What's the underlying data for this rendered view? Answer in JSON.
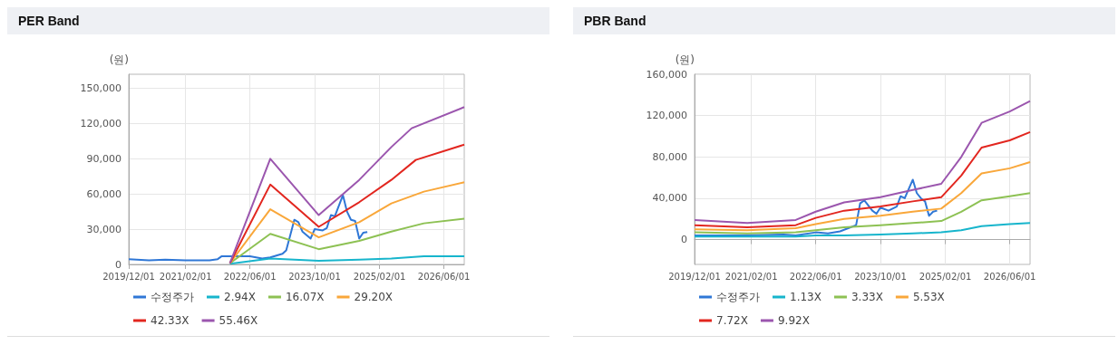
{
  "chart_data": [
    {
      "type": "line",
      "title": "PER Band",
      "ylabel": "(원)",
      "grid": true,
      "legend": "bottom",
      "marker": "none",
      "xlim": [
        "2019-12-01",
        "2026-11-01"
      ],
      "xticks": [
        {
          "value": "2019-12-01",
          "label": "2019/12/01"
        },
        {
          "value": "2021-02-01",
          "label": "2021/02/01"
        },
        {
          "value": "2022-06-01",
          "label": "2022/06/01"
        },
        {
          "value": "2023-10-01",
          "label": "2023/10/01"
        },
        {
          "value": "2025-02-01",
          "label": "2025/02/01"
        },
        {
          "value": "2026-06-01",
          "label": "2026/06/01"
        }
      ],
      "ylim": [
        0,
        162000
      ],
      "yticks": [
        0,
        {
          "value": 30000,
          "label": "30,000"
        },
        {
          "value": 60000,
          "label": "60,000"
        },
        {
          "value": 90000,
          "label": "90,000"
        },
        {
          "value": 120000,
          "label": "120,000"
        },
        {
          "value": 150000,
          "label": "150,000"
        }
      ],
      "series": [
        {
          "name": "수정주가",
          "color": "#2f77d6",
          "x": [
            "2019-12-01",
            "2020-05-01",
            "2020-09-01",
            "2021-02-01",
            "2021-08-01",
            "2021-10-01",
            "2021-11-01",
            "2022-03-01",
            "2022-06-01",
            "2022-09-01",
            "2022-11-01",
            "2023-02-01",
            "2023-03-01",
            "2023-04-01",
            "2023-05-01",
            "2023-06-01",
            "2023-07-01",
            "2023-09-01",
            "2023-10-01",
            "2023-12-01",
            "2024-01-01",
            "2024-02-01",
            "2024-03-01",
            "2024-05-01",
            "2024-06-01",
            "2024-07-01",
            "2024-08-01",
            "2024-09-01",
            "2024-10-01",
            "2024-11-01"
          ],
          "values": [
            4400,
            3500,
            4000,
            3500,
            3500,
            4500,
            7000,
            7000,
            7000,
            5000,
            6000,
            9000,
            12000,
            25000,
            38000,
            36000,
            28000,
            22000,
            30000,
            29000,
            31000,
            42000,
            41000,
            59000,
            45000,
            38000,
            37000,
            22000,
            27000,
            27500
          ]
        },
        {
          "name": "2.94X",
          "color": "#17b5cc",
          "x": [
            "2022-01-01",
            "2022-11-01",
            "2023-11-01",
            "2024-09-01",
            "2025-05-01",
            "2026-01-01",
            "2026-11-01"
          ],
          "values": [
            500,
            5000,
            3000,
            4000,
            5000,
            7000,
            7000
          ]
        },
        {
          "name": "16.07X",
          "color": "#8dc153",
          "x": [
            "2022-01-01",
            "2022-11-01",
            "2023-11-01",
            "2024-09-01",
            "2025-05-01",
            "2026-01-01",
            "2026-11-01"
          ],
          "values": [
            1000,
            26000,
            13000,
            20000,
            28000,
            35000,
            39000
          ]
        },
        {
          "name": "29.20X",
          "color": "#f9a73a",
          "x": [
            "2022-01-01",
            "2022-11-01",
            "2023-11-01",
            "2024-09-01",
            "2025-05-01",
            "2026-01-01",
            "2026-11-01"
          ],
          "values": [
            1000,
            47000,
            23000,
            36000,
            52000,
            62000,
            70000
          ]
        },
        {
          "name": "42.33X",
          "color": "#e2261f",
          "x": [
            "2022-01-01",
            "2022-11-01",
            "2023-11-01",
            "2024-09-01",
            "2025-05-01",
            "2025-11-01",
            "2026-11-01"
          ],
          "values": [
            1000,
            68000,
            32000,
            53000,
            72000,
            89000,
            102000
          ]
        },
        {
          "name": "55.46X",
          "color": "#9b56ae",
          "x": [
            "2022-01-01",
            "2022-11-01",
            "2023-11-01",
            "2024-09-01",
            "2025-05-01",
            "2025-10-01",
            "2026-11-01"
          ],
          "values": [
            1000,
            90000,
            42000,
            72000,
            100000,
            116000,
            134000
          ]
        }
      ]
    },
    {
      "type": "line",
      "title": "PBR Band",
      "ylabel": "(원)",
      "grid": true,
      "legend": "bottom",
      "marker": "none",
      "xlim": [
        "2019-12-01",
        "2026-11-01"
      ],
      "xticks": [
        {
          "value": "2019-12-01",
          "label": "2019/12/01"
        },
        {
          "value": "2021-02-01",
          "label": "2021/02/01"
        },
        {
          "value": "2022-06-01",
          "label": "2022/06/01"
        },
        {
          "value": "2023-10-01",
          "label": "2023/10/01"
        },
        {
          "value": "2025-02-01",
          "label": "2025/02/01"
        },
        {
          "value": "2026-06-01",
          "label": "2026/06/01"
        }
      ],
      "ylim": [
        -24000,
        160000
      ],
      "yticks": [
        0,
        {
          "value": 40000,
          "label": "40,000"
        },
        {
          "value": 80000,
          "label": "80,000"
        },
        {
          "value": 120000,
          "label": "120,000"
        },
        {
          "value": 160000,
          "label": "160,000"
        }
      ],
      "series": [
        {
          "name": "수정주가",
          "color": "#2f77d6",
          "x": [
            "2019-12-01",
            "2021-01-01",
            "2021-10-01",
            "2022-01-01",
            "2022-06-01",
            "2022-09-01",
            "2022-12-01",
            "2023-02-01",
            "2023-04-01",
            "2023-05-01",
            "2023-06-01",
            "2023-08-01",
            "2023-09-01",
            "2023-10-01",
            "2023-12-01",
            "2024-02-01",
            "2024-03-01",
            "2024-04-01",
            "2024-06-01",
            "2024-07-01",
            "2024-08-01",
            "2024-09-01",
            "2024-10-01",
            "2024-11-01",
            "2024-12-01"
          ],
          "values": [
            4000,
            4000,
            5000,
            4000,
            7000,
            6000,
            8000,
            11000,
            14000,
            35000,
            38000,
            28000,
            25000,
            31000,
            28000,
            32000,
            42000,
            40000,
            58000,
            45000,
            40000,
            37000,
            23000,
            27000,
            28000
          ]
        },
        {
          "name": "1.13X",
          "color": "#17b5cc",
          "x": [
            "2019-12-01",
            "2021-01-01",
            "2022-01-01",
            "2022-06-01",
            "2023-01-01",
            "2023-10-01",
            "2024-06-01",
            "2025-01-01",
            "2025-06-01",
            "2025-11-01",
            "2026-06-01",
            "2026-11-01"
          ],
          "values": [
            3000,
            3000,
            3000,
            4000,
            4000,
            5000,
            6000,
            7000,
            9000,
            13000,
            15000,
            16000
          ]
        },
        {
          "name": "3.33X",
          "color": "#8dc153",
          "x": [
            "2019-12-01",
            "2021-01-01",
            "2022-01-01",
            "2022-06-01",
            "2023-01-01",
            "2023-10-01",
            "2024-06-01",
            "2025-01-01",
            "2025-06-01",
            "2025-11-01",
            "2026-06-01",
            "2026-11-01"
          ],
          "values": [
            7000,
            6000,
            7000,
            9000,
            12000,
            14000,
            16000,
            18000,
            27000,
            38000,
            42000,
            45000
          ]
        },
        {
          "name": "5.53X",
          "color": "#f9a73a",
          "x": [
            "2019-12-01",
            "2021-01-01",
            "2022-01-01",
            "2022-06-01",
            "2023-01-01",
            "2023-10-01",
            "2024-06-01",
            "2025-01-01",
            "2025-06-01",
            "2025-11-01",
            "2026-06-01",
            "2026-11-01"
          ],
          "values": [
            10000,
            9000,
            11000,
            15000,
            20000,
            23000,
            27000,
            30000,
            45000,
            64000,
            69000,
            75000
          ]
        },
        {
          "name": "7.72X",
          "color": "#e2261f",
          "x": [
            "2019-12-01",
            "2021-01-01",
            "2022-01-01",
            "2022-06-01",
            "2023-01-01",
            "2023-10-01",
            "2024-06-01",
            "2025-01-01",
            "2025-06-01",
            "2025-11-01",
            "2026-06-01",
            "2026-11-01"
          ],
          "values": [
            14000,
            12000,
            14000,
            21000,
            28000,
            32000,
            37000,
            41000,
            62000,
            89000,
            96000,
            104000
          ]
        },
        {
          "name": "9.92X",
          "color": "#9b56ae",
          "x": [
            "2019-12-01",
            "2021-01-01",
            "2022-01-01",
            "2022-06-01",
            "2023-01-01",
            "2023-10-01",
            "2024-06-01",
            "2025-01-01",
            "2025-06-01",
            "2025-11-01",
            "2026-06-01",
            "2026-11-01"
          ],
          "values": [
            19000,
            16000,
            19000,
            27000,
            36000,
            41000,
            48000,
            54000,
            80000,
            113000,
            124000,
            134000
          ]
        }
      ]
    }
  ]
}
